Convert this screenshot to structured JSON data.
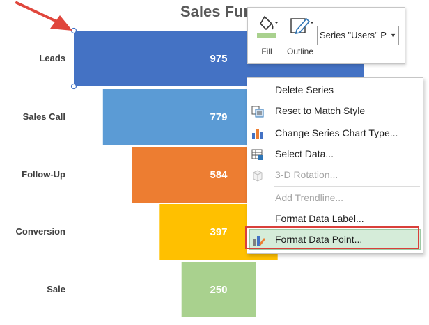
{
  "chart": {
    "title": "Sales Fun",
    "colors": {
      "leads": "#4472c4",
      "sales_call": "#5b9bd5",
      "follow_up": "#ed7d31",
      "conversion": "#ffc000",
      "sale": "#a9d18e",
      "selection_handle": "#4472c4",
      "annotation_arrow": "#e0463c"
    }
  },
  "chart_data": {
    "type": "bar",
    "orientation": "horizontal-funnel",
    "categories": [
      "Leads",
      "Sales Call",
      "Follow-Up",
      "Conversion",
      "Sale"
    ],
    "values": [
      975,
      779,
      584,
      397,
      250
    ],
    "title": "Sales Fun",
    "xlabel": "",
    "ylabel": "",
    "grid": false,
    "legend": "none"
  },
  "mini_toolbar": {
    "fill_label": "Fill",
    "fill_icon": "paint-bucket-icon",
    "outline_label": "Outline",
    "outline_icon": "pencil-icon",
    "series_selector_value": "Series \"Users\" P"
  },
  "context_menu": {
    "items": [
      {
        "label": "Delete Series",
        "icon": "",
        "disabled": false
      },
      {
        "label": "Reset to Match Style",
        "icon": "reset-style-icon",
        "disabled": false
      },
      {
        "label": "Change Series Chart Type...",
        "icon": "bar-chart-icon",
        "disabled": false
      },
      {
        "label": "Select Data...",
        "icon": "table-icon",
        "disabled": false
      },
      {
        "label": "3-D Rotation...",
        "icon": "cube-icon",
        "disabled": true
      },
      {
        "label": "Add Trendline...",
        "icon": "",
        "disabled": true
      },
      {
        "label": "Format Data Label...",
        "icon": "",
        "disabled": false
      },
      {
        "label": "Format Data Point...",
        "icon": "format-point-icon",
        "disabled": false,
        "highlighted": true
      }
    ]
  }
}
